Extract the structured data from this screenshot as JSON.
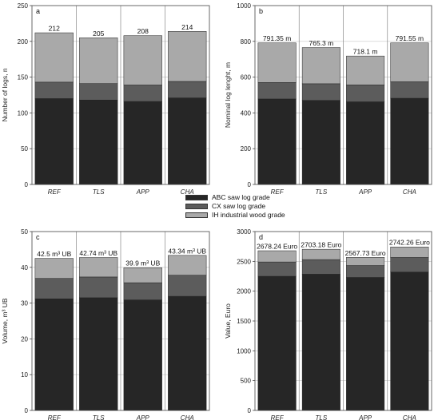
{
  "legend": [
    {
      "label": "ABC saw log grade",
      "color": "#262626"
    },
    {
      "label": "CX saw log grade",
      "color": "#5c5c5c"
    },
    {
      "label": "IH industrial wood grade",
      "color": "#a9a9a9"
    }
  ],
  "chart_data": [
    {
      "panel": "a",
      "type": "bar",
      "stacked": true,
      "ylabel": "Number of logs, n",
      "ylim": [
        0,
        250
      ],
      "yticks": [
        0,
        50,
        100,
        150,
        200,
        250
      ],
      "categories": [
        "REF",
        "TLS",
        "APP",
        "CHA"
      ],
      "series": [
        {
          "name": "ABC saw log grade",
          "values": [
            120,
            118,
            116,
            121
          ]
        },
        {
          "name": "CX saw log grade",
          "values": [
            23,
            23,
            23,
            23
          ]
        },
        {
          "name": "IH industrial wood grade",
          "values": [
            69,
            64,
            69,
            70
          ]
        }
      ],
      "totals": [
        "212",
        "205",
        "208",
        "214"
      ]
    },
    {
      "panel": "b",
      "type": "bar",
      "stacked": true,
      "ylabel": "Nominal log lenght, m",
      "ylim": [
        0,
        1000
      ],
      "yticks": [
        0,
        200,
        400,
        600,
        800,
        1000
      ],
      "categories": [
        "REF",
        "TLS",
        "APP",
        "CHA"
      ],
      "series": [
        {
          "name": "ABC saw log grade",
          "values": [
            478,
            470,
            462,
            482
          ]
        },
        {
          "name": "CX saw log grade",
          "values": [
            92,
            93,
            95,
            92
          ]
        },
        {
          "name": "IH industrial wood grade",
          "values": [
            221.35,
            202.3,
            161.1,
            217.55
          ]
        }
      ],
      "totals": [
        "791.35 m",
        "765.3 m",
        "718.1 m",
        "791.55 m"
      ]
    },
    {
      "panel": "c",
      "type": "bar",
      "stacked": true,
      "ylabel": "Volume, m³ UB",
      "ylim": [
        0,
        50
      ],
      "yticks": [
        0,
        10,
        20,
        30,
        40,
        50
      ],
      "categories": [
        "REF",
        "TLS",
        "APP",
        "CHA"
      ],
      "series": [
        {
          "name": "ABC saw log grade",
          "values": [
            31.2,
            31.5,
            30.9,
            31.9
          ]
        },
        {
          "name": "CX saw log grade",
          "values": [
            5.7,
            5.8,
            4.8,
            5.9
          ]
        },
        {
          "name": "IH industrial wood grade",
          "values": [
            5.6,
            5.44,
            4.2,
            5.54
          ]
        }
      ],
      "totals": [
        "42.5 m³ UB",
        "42.74 m³ UB",
        "39.9 m³ UB",
        "43.34 m³ UB"
      ]
    },
    {
      "panel": "d",
      "type": "bar",
      "stacked": true,
      "ylabel": "Value, Euro",
      "ylim": [
        0,
        3000
      ],
      "yticks": [
        0,
        500,
        1000,
        1500,
        2000,
        2500,
        3000
      ],
      "categories": [
        "REF",
        "TLS",
        "APP",
        "CHA"
      ],
      "series": [
        {
          "name": "ABC saw log grade",
          "values": [
            2250,
            2285,
            2230,
            2320
          ]
        },
        {
          "name": "CX saw log grade",
          "values": [
            240,
            245,
            200,
            245
          ]
        },
        {
          "name": "IH industrial wood grade",
          "values": [
            188.24,
            173.18,
            137.73,
            177.26
          ]
        }
      ],
      "totals": [
        "2678.24 Euro",
        "2703.18 Euro",
        "2567.73 Euro",
        "2742.26 Euro"
      ]
    }
  ]
}
